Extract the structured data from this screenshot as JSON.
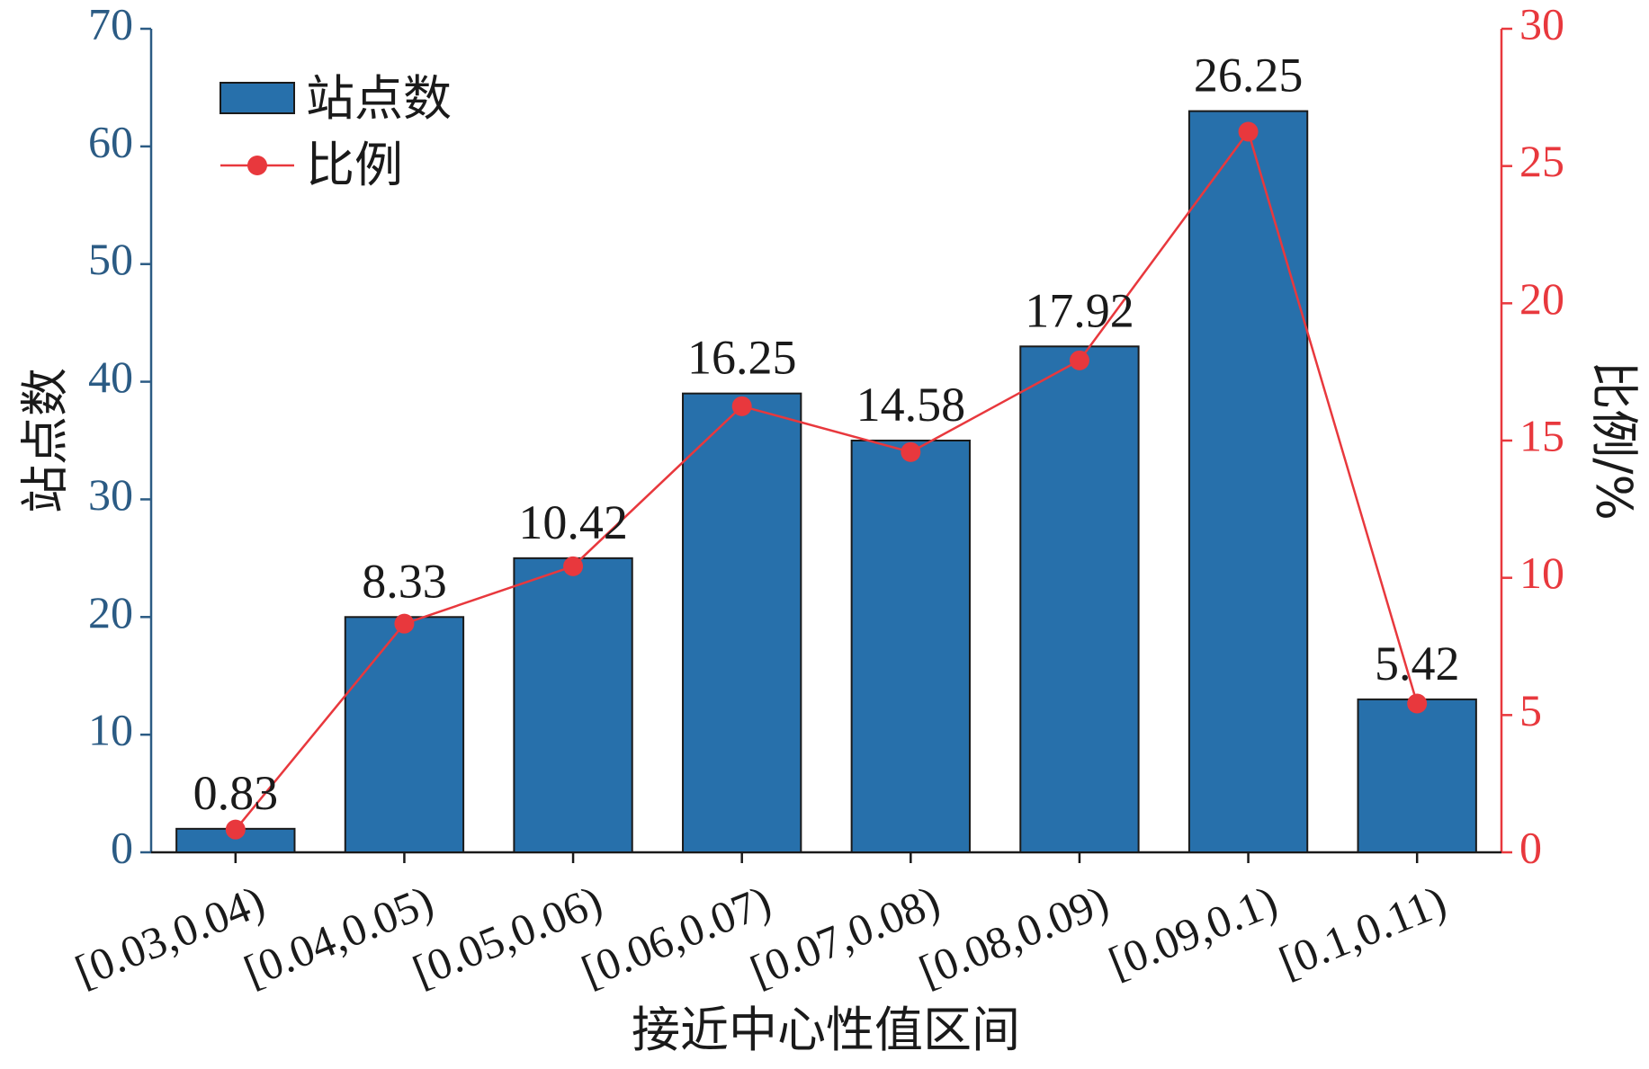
{
  "chart_data": {
    "type": "bar",
    "categories": [
      "[0.03,0.04)",
      "[0.04,0.05)",
      "[0.05,0.06)",
      "[0.06,0.07)",
      "[0.07,0.08)",
      "[0.08,0.09)",
      "[0.09,0.1)",
      "[0.1,0.11)"
    ],
    "series": [
      {
        "name": "站点数",
        "kind": "bar",
        "axis": "left",
        "values": [
          2,
          20,
          25,
          39,
          35,
          43,
          63,
          13
        ]
      },
      {
        "name": "比例",
        "kind": "line",
        "axis": "right",
        "values": [
          0.83,
          8.33,
          10.42,
          16.25,
          14.58,
          17.92,
          26.25,
          5.42
        ]
      }
    ],
    "data_labels": [
      "0.83",
      "8.33",
      "10.42",
      "16.25",
      "14.58",
      "17.92",
      "26.25",
      "5.42"
    ],
    "xlabel": "接近中心性值区间",
    "ylabel": "站点数",
    "ylabel_right": "比例/%",
    "ylim": [
      0,
      70
    ],
    "ylim_right": [
      0,
      30
    ],
    "yticks": [
      "0",
      "10",
      "20",
      "30",
      "40",
      "50",
      "60",
      "70"
    ],
    "yticks_right": [
      "0",
      "5",
      "10",
      "15",
      "20",
      "25",
      "30"
    ],
    "legend_position": "top-left",
    "grid": false,
    "colors": {
      "bar": "#2770ab",
      "line": "#e8383d",
      "left_axis": "#2b5b84",
      "right_axis": "#e8383d",
      "text": "#1a1a1a"
    }
  }
}
